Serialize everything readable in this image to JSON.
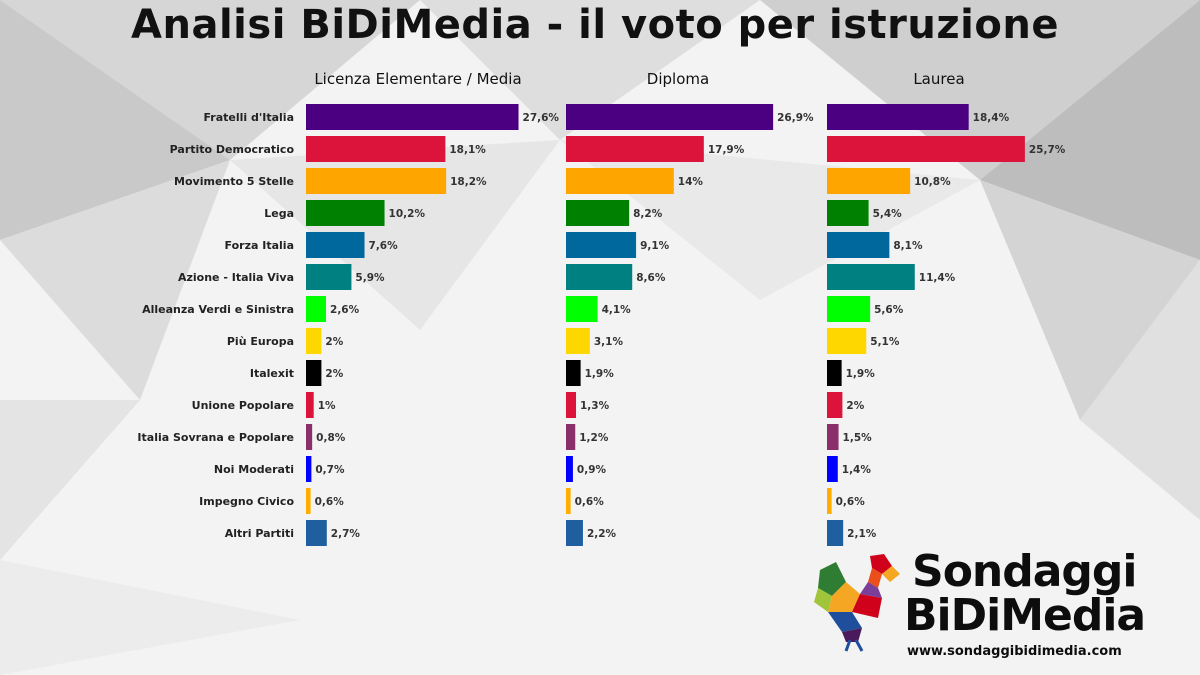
{
  "title": "Analisi BiDiMedia - il voto per istruzione",
  "logo": {
    "line1": "Sondaggi",
    "line2": "BiDiMedia",
    "url": "www.sondaggibidimedia.com"
  },
  "chart_data": {
    "type": "bar",
    "orientation": "horizontal",
    "categories": [
      "Fratelli d'Italia",
      "Partito Democratico",
      "Movimento 5 Stelle",
      "Lega",
      "Forza Italia",
      "Azione - Italia Viva",
      "Alleanza Verdi e Sinistra",
      "Più Europa",
      "Italexit",
      "Unione Popolare",
      "Italia Sovrana e Popolare",
      "Noi Moderati",
      "Impegno Civico",
      "Altri Partiti"
    ],
    "colors": [
      "#4b0082",
      "#dc143c",
      "#ffa500",
      "#008000",
      "#00689c",
      "#008080",
      "#00ff00",
      "#ffd700",
      "#000000",
      "#dc143c",
      "#8b2f6b",
      "#0000ff",
      "#ffae00",
      "#1f5fa0"
    ],
    "series": [
      {
        "name": "Licenza Elementare / Media",
        "values": [
          27.6,
          18.1,
          18.2,
          10.2,
          7.6,
          5.9,
          2.6,
          2,
          2,
          1,
          0.8,
          0.7,
          0.6,
          2.7
        ],
        "labels": [
          "27,6%",
          "18,1%",
          "18,2%",
          "10,2%",
          "7,6%",
          "5,9%",
          "2,6%",
          "2%",
          "2%",
          "1%",
          "0,8%",
          "0,7%",
          "0,6%",
          "2,7%"
        ]
      },
      {
        "name": "Diploma",
        "values": [
          26.9,
          17.9,
          14,
          8.2,
          9.1,
          8.6,
          4.1,
          3.1,
          1.9,
          1.3,
          1.2,
          0.9,
          0.6,
          2.2
        ],
        "labels": [
          "26,9%",
          "17,9%",
          "14%",
          "8,2%",
          "9,1%",
          "8,6%",
          "4,1%",
          "3,1%",
          "1,9%",
          "1,3%",
          "1,2%",
          "0,9%",
          "0,6%",
          "2,2%"
        ]
      },
      {
        "name": "Laurea",
        "values": [
          18.4,
          25.7,
          10.8,
          5.4,
          8.1,
          11.4,
          5.6,
          5.1,
          1.9,
          2,
          1.5,
          1.4,
          0.6,
          2.1
        ],
        "labels": [
          "18,4%",
          "25,7%",
          "10,8%",
          "5,4%",
          "8,1%",
          "11,4%",
          "5,6%",
          "5,1%",
          "1,9%",
          "2%",
          "1,5%",
          "1,4%",
          "0,6%",
          "2,1%"
        ]
      }
    ],
    "title": "Analisi BiDiMedia - il voto per istruzione",
    "xlabel": "",
    "ylabel": "",
    "grid": false,
    "legend": "none"
  }
}
